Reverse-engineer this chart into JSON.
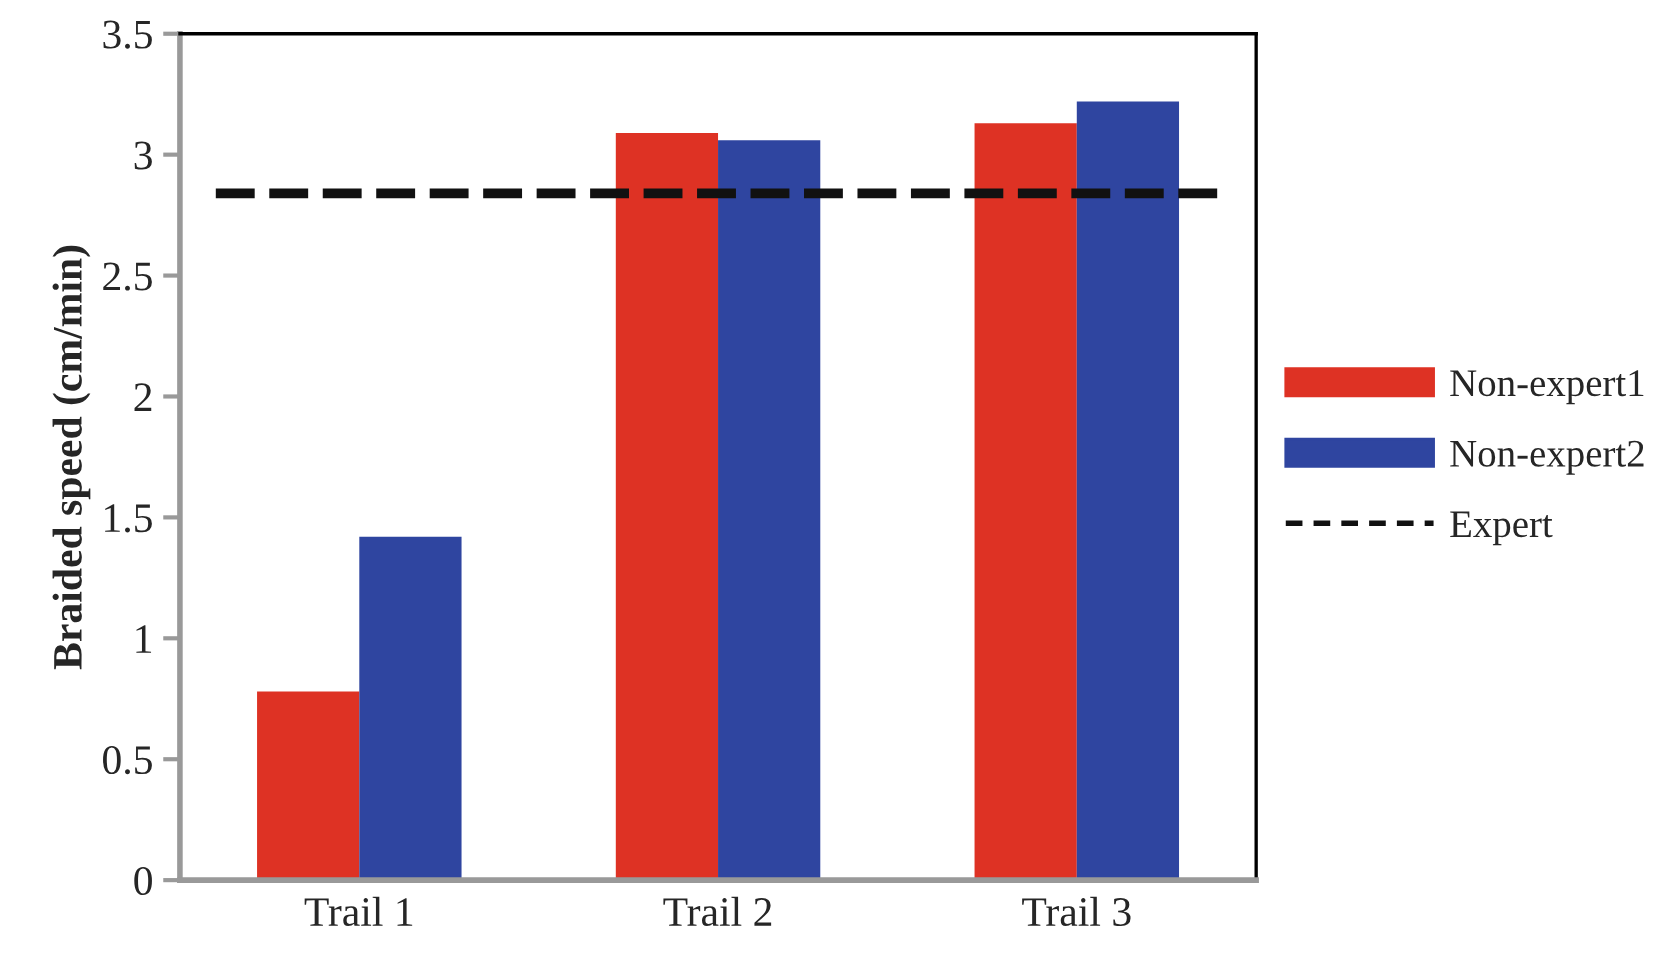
{
  "chart_data": {
    "type": "bar",
    "ylabel": "Braided speed (cm/min)",
    "categories": [
      "Trail 1",
      "Trail 2",
      "Trail 3"
    ],
    "series": [
      {
        "name": "Non-expert1",
        "color": "#de3224",
        "values": [
          0.78,
          3.09,
          3.13
        ]
      },
      {
        "name": "Non-expert2",
        "color": "#2f45a0",
        "values": [
          1.42,
          3.06,
          3.22
        ]
      }
    ],
    "ref_lines": [
      {
        "axis": "y",
        "value": 2.84,
        "label": "Expert",
        "color": "#111111",
        "line_style": "dashed"
      }
    ],
    "ylim": [
      0,
      3.5
    ],
    "yticks": [
      0,
      0.5,
      1,
      1.5,
      2,
      2.5,
      3,
      3.5
    ],
    "grid": false,
    "legend": "right"
  }
}
